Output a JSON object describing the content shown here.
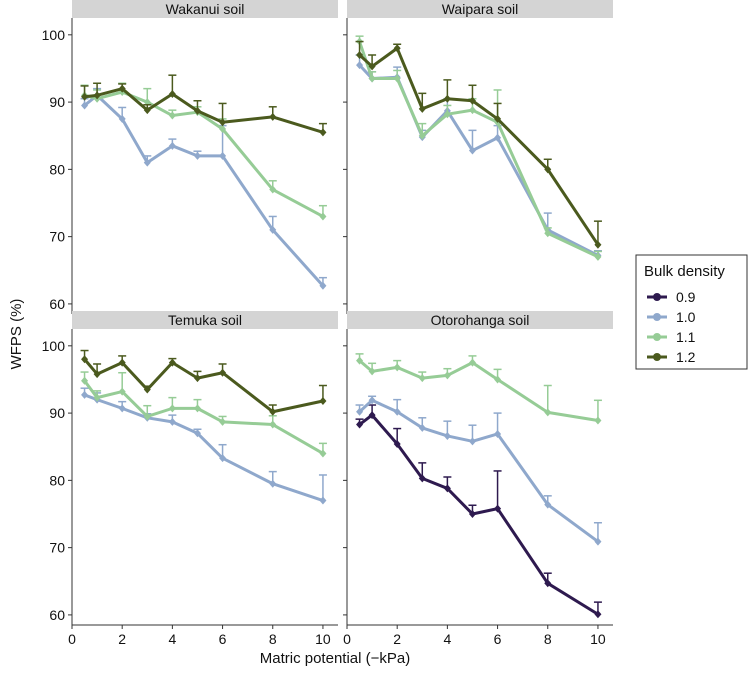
{
  "figure": {
    "ylabel": "WFPS (%)",
    "xlabel": "Matric potential (−kPa)",
    "legend_title": "Bulk density"
  },
  "legend": [
    {
      "label": "0.9",
      "color": "#2e1a4f"
    },
    {
      "label": "1.0",
      "color": "#8fa8cc"
    },
    {
      "label": "1.1",
      "color": "#96cc96"
    },
    {
      "label": "1.2",
      "color": "#4b5a1e"
    }
  ],
  "chart_data": [
    {
      "type": "line",
      "title": "Wakanui soil",
      "xlabel": "Matric potential (−kPa)",
      "ylabel": "WFPS (%)",
      "xlim": [
        0,
        10.6
      ],
      "ylim": [
        58.5,
        102.5
      ],
      "xticks": [
        "0",
        "2",
        "4",
        "6",
        "8",
        "10"
      ],
      "yticks": [
        "60",
        "70",
        "80",
        "90",
        "100"
      ],
      "x": [
        0.5,
        1,
        2,
        3,
        4,
        5,
        6,
        8,
        10
      ],
      "series": [
        {
          "name": "1.0",
          "color": "#8fa8cc",
          "values": [
            89.5,
            91.0,
            87.5,
            81.0,
            83.5,
            82.0,
            82.0,
            71.0,
            62.7
          ],
          "errors": [
            1.0,
            1.0,
            1.7,
            1.0,
            1.0,
            0.7,
            4.5,
            2.0,
            1.2
          ]
        },
        {
          "name": "1.1",
          "color": "#96cc96",
          "values": [
            91.0,
            90.5,
            91.5,
            90.0,
            88.0,
            88.5,
            86.0,
            77.0,
            73.0
          ],
          "errors": [
            1.5,
            1.3,
            1.3,
            2.0,
            0.8,
            0.8,
            1.5,
            1.3,
            1.6
          ]
        },
        {
          "name": "1.2",
          "color": "#4b5a1e",
          "values": [
            90.8,
            91.0,
            92.0,
            88.8,
            91.2,
            88.7,
            87.0,
            87.8,
            85.5
          ],
          "errors": [
            1.6,
            1.8,
            0.7,
            0.8,
            2.8,
            1.5,
            2.8,
            1.5,
            1.3
          ]
        }
      ]
    },
    {
      "type": "line",
      "title": "Waipara soil",
      "xlabel": "Matric potential (−kPa)",
      "ylabel": "WFPS (%)",
      "xlim": [
        0,
        10.6
      ],
      "ylim": [
        58.5,
        102.5
      ],
      "xticks": [
        "0",
        "2",
        "4",
        "6",
        "8",
        "10"
      ],
      "yticks": [
        "60",
        "70",
        "80",
        "90",
        "100"
      ],
      "x": [
        0.5,
        1,
        2,
        3,
        4,
        5,
        6,
        8,
        10
      ],
      "series": [
        {
          "name": "1.0",
          "color": "#8fa8cc",
          "values": [
            95.5,
            93.5,
            93.7,
            84.8,
            88.7,
            82.8,
            84.7,
            71.0,
            67.2
          ],
          "errors": [
            1.5,
            1.0,
            1.5,
            1.0,
            1.8,
            3.0,
            1.8,
            2.5,
            0.7
          ]
        },
        {
          "name": "1.1",
          "color": "#96cc96",
          "values": [
            99.0,
            93.5,
            93.5,
            85.0,
            88.2,
            88.8,
            87.0,
            70.5,
            67.0
          ],
          "errors": [
            0.8,
            1.0,
            1.2,
            1.8,
            1.3,
            1.7,
            4.8,
            0.8,
            0.8
          ]
        },
        {
          "name": "1.2",
          "color": "#4b5a1e",
          "values": [
            97.0,
            95.3,
            98.0,
            89.0,
            90.5,
            90.2,
            87.5,
            80.0,
            68.8
          ],
          "errors": [
            2.0,
            1.7,
            0.6,
            2.3,
            2.8,
            2.3,
            2.3,
            1.5,
            3.5
          ]
        }
      ]
    },
    {
      "type": "line",
      "title": "Temuka soil",
      "xlabel": "Matric potential (−kPa)",
      "ylabel": "WFPS (%)",
      "xlim": [
        0,
        10.6
      ],
      "ylim": [
        58.5,
        102.5
      ],
      "xticks": [
        "0",
        "2",
        "4",
        "6",
        "8",
        "10"
      ],
      "yticks": [
        "60",
        "70",
        "80",
        "90",
        "100"
      ],
      "x": [
        0.5,
        1,
        2,
        3,
        4,
        5,
        6,
        8,
        10
      ],
      "series": [
        {
          "name": "1.0",
          "color": "#8fa8cc",
          "values": [
            92.7,
            92.0,
            90.7,
            89.3,
            88.7,
            87.0,
            83.3,
            79.5,
            77.0
          ],
          "errors": [
            1.0,
            1.0,
            1.0,
            0.6,
            1.0,
            0.6,
            2.0,
            1.8,
            3.8
          ]
        },
        {
          "name": "1.1",
          "color": "#96cc96",
          "values": [
            94.8,
            92.3,
            93.2,
            89.5,
            90.7,
            90.7,
            88.7,
            88.3,
            84.0
          ],
          "errors": [
            1.3,
            1.0,
            2.8,
            1.6,
            1.6,
            1.3,
            0.8,
            1.3,
            1.5
          ]
        },
        {
          "name": "1.2",
          "color": "#4b5a1e",
          "values": [
            98.0,
            95.8,
            97.5,
            93.5,
            97.5,
            95.2,
            96.0,
            90.2,
            91.8
          ],
          "errors": [
            1.3,
            1.5,
            1.0,
            0.5,
            0.6,
            1.0,
            1.3,
            1.0,
            2.3
          ]
        }
      ]
    },
    {
      "type": "line",
      "title": "Otorohanga soil",
      "xlabel": "Matric potential (−kPa)",
      "ylabel": "WFPS (%)",
      "xlim": [
        0,
        10.6
      ],
      "ylim": [
        58.5,
        102.5
      ],
      "xticks": [
        "0",
        "2",
        "4",
        "6",
        "8",
        "10"
      ],
      "yticks": [
        "60",
        "70",
        "80",
        "90",
        "100"
      ],
      "x": [
        0.5,
        1,
        2,
        3,
        4,
        5,
        6,
        8,
        10
      ],
      "series": [
        {
          "name": "0.9",
          "color": "#2e1a4f",
          "values": [
            88.3,
            89.7,
            85.4,
            80.3,
            78.8,
            75.0,
            75.8,
            64.7,
            60.1
          ],
          "errors": [
            0.8,
            1.5,
            2.3,
            2.3,
            1.7,
            1.3,
            5.6,
            1.5,
            1.8
          ]
        },
        {
          "name": "1.0",
          "color": "#8fa8cc",
          "values": [
            90.2,
            91.9,
            90.2,
            87.8,
            86.6,
            85.8,
            86.9,
            76.4,
            70.9
          ],
          "errors": [
            1.0,
            0.6,
            1.8,
            1.5,
            2.2,
            2.4,
            3.1,
            1.3,
            2.8
          ]
        },
        {
          "name": "1.1",
          "color": "#96cc96",
          "values": [
            97.8,
            96.2,
            96.8,
            95.2,
            95.6,
            97.5,
            95.0,
            90.1,
            88.9
          ],
          "errors": [
            1.0,
            1.2,
            1.0,
            0.9,
            1.0,
            1.0,
            1.5,
            4.0,
            3.0
          ]
        }
      ]
    }
  ]
}
